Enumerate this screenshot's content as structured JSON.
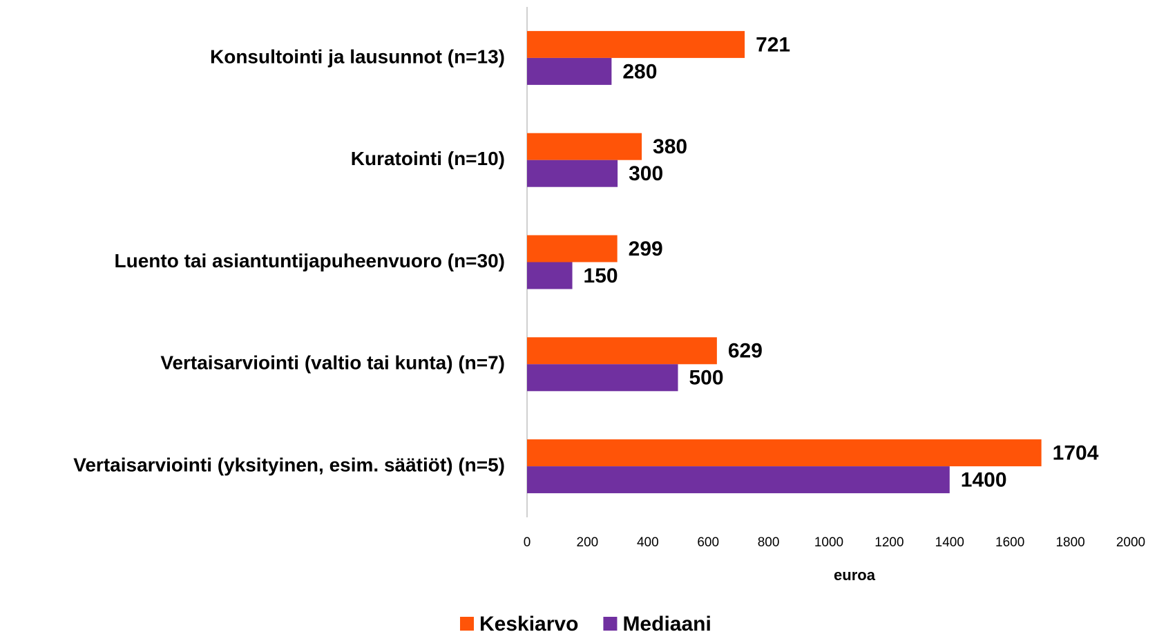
{
  "chart_data": {
    "type": "bar",
    "orientation": "horizontal",
    "categories": [
      "Konsultointi ja lausunnot (n=13)",
      "Kuratointi (n=10)",
      "Luento tai asiantuntijapuheenvuoro (n=30)",
      "Vertaisarviointi (valtio tai kunta) (n=7)",
      "Vertaisarviointi (yksityinen, esim. säätiöt) (n=5)"
    ],
    "series": [
      {
        "name": "Keskiarvo",
        "color": "#ff5408",
        "values": [
          721,
          380,
          299,
          629,
          1704
        ]
      },
      {
        "name": "Mediaani",
        "color": "#7030a0",
        "values": [
          280,
          300,
          150,
          500,
          1400
        ]
      }
    ],
    "xlabel": "euroa",
    "xlim": [
      0,
      2000
    ],
    "xticks": [
      0,
      200,
      400,
      600,
      800,
      1000,
      1200,
      1400,
      1600,
      1800,
      2000
    ],
    "grid": false,
    "legend": "bottom"
  }
}
